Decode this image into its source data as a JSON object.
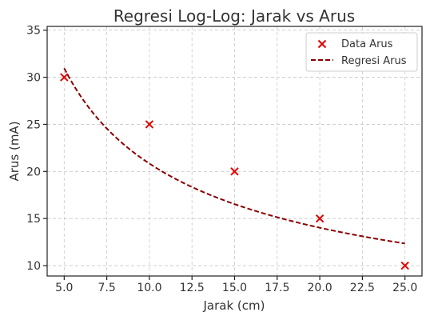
{
  "chart_data": {
    "type": "scatter",
    "title": "Regresi Log-Log: Jarak vs Arus",
    "xlabel": "Jarak (cm)",
    "ylabel": "Arus (mA)",
    "xlim": [
      4,
      26
    ],
    "ylim": [
      8.9,
      35.4
    ],
    "xticks": [
      5.0,
      7.5,
      10.0,
      12.5,
      15.0,
      17.5,
      20.0,
      22.5,
      25.0
    ],
    "xtick_labels": [
      "5.0",
      "7.5",
      "10.0",
      "12.5",
      "15.0",
      "17.5",
      "20.0",
      "22.5",
      "25.0"
    ],
    "yticks": [
      10,
      15,
      20,
      25,
      30,
      35
    ],
    "ytick_labels": [
      "10",
      "15",
      "20",
      "25",
      "30",
      "35"
    ],
    "grid": true,
    "legend_position": "top-right",
    "series": [
      {
        "name": "Data Arus",
        "kind": "scatter",
        "marker": "x",
        "color": "#e00000",
        "x": [
          5,
          10,
          15,
          20,
          25
        ],
        "y": [
          30,
          25,
          20,
          15,
          10
        ]
      },
      {
        "name": "Regresi Arus",
        "kind": "line",
        "style": "dashed",
        "color": "#8b0000",
        "fit": "power",
        "coefficient": 77.6,
        "exponent": -0.571,
        "x_range": [
          5,
          25
        ]
      }
    ]
  }
}
